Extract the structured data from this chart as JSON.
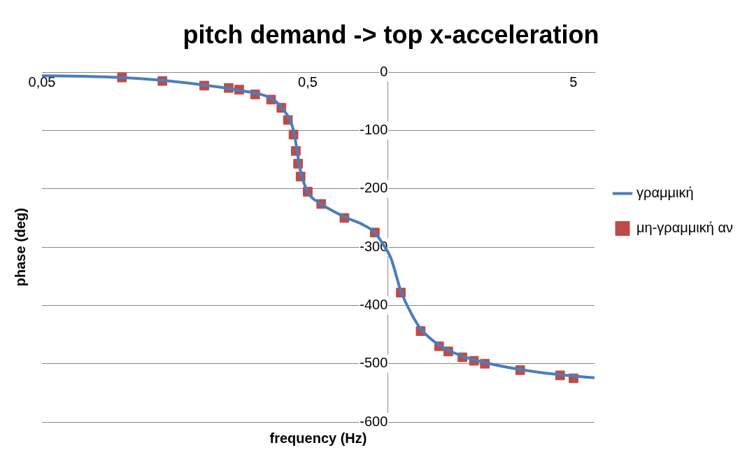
{
  "chart_data": {
    "type": "line",
    "title": "pitch demand -> top x-acceleration",
    "xlabel": "frequency (Hz)",
    "ylabel": "phase (deg)",
    "log": "x",
    "xlim": [
      0.05,
      6
    ],
    "xticks": [
      {
        "value": 0.05,
        "label": "0,05"
      },
      {
        "value": 0.5,
        "label": "0,5"
      },
      5
    ],
    "ylim": [
      -600,
      0
    ],
    "yticks": [
      0,
      -100,
      -200,
      -300,
      -400,
      -500,
      -600
    ],
    "grid": "y",
    "legend": "right",
    "series": [
      {
        "name": "γραμμική",
        "type": "line",
        "color": "#4a7ebb",
        "marker": "none",
        "x": [
          0.05,
          0.072,
          0.1,
          0.142,
          0.204,
          0.276,
          0.364,
          0.398,
          0.442,
          0.47,
          0.5,
          0.562,
          0.687,
          0.81,
          0.894,
          0.96,
          1.03,
          1.12,
          1.23,
          1.33,
          1.56,
          1.91,
          2.32,
          3.15,
          4.45,
          6.0
        ],
        "values": [
          -6,
          -7,
          -9,
          -14,
          -22,
          -31,
          -45,
          -60,
          -100,
          -170,
          -205,
          -226,
          -248,
          -262,
          -275,
          -295,
          -320,
          -375,
          -415,
          -440,
          -468,
          -487,
          -498,
          -510,
          -519,
          -524
        ]
      },
      {
        "name": "μη-γραμμική αν",
        "type": "scatter",
        "color": "#be4b48",
        "marker": "square",
        "x": [
          0.1,
          0.142,
          0.204,
          0.252,
          0.276,
          0.317,
          0.364,
          0.398,
          0.421,
          0.442,
          0.451,
          0.46,
          0.47,
          0.5,
          0.562,
          0.687,
          0.894,
          1.12,
          1.33,
          1.56,
          1.69,
          1.91,
          2.11,
          2.32,
          3.15,
          4.45,
          5.0
        ],
        "values": [
          -9,
          -15,
          -23,
          -27,
          -30,
          -38,
          -47,
          -61,
          -82,
          -107,
          -135,
          -157,
          -179,
          -205,
          -226,
          -250,
          -275,
          -378,
          -444,
          -470,
          -479,
          -489,
          -495,
          -500,
          -511,
          -520,
          -525
        ]
      }
    ]
  }
}
